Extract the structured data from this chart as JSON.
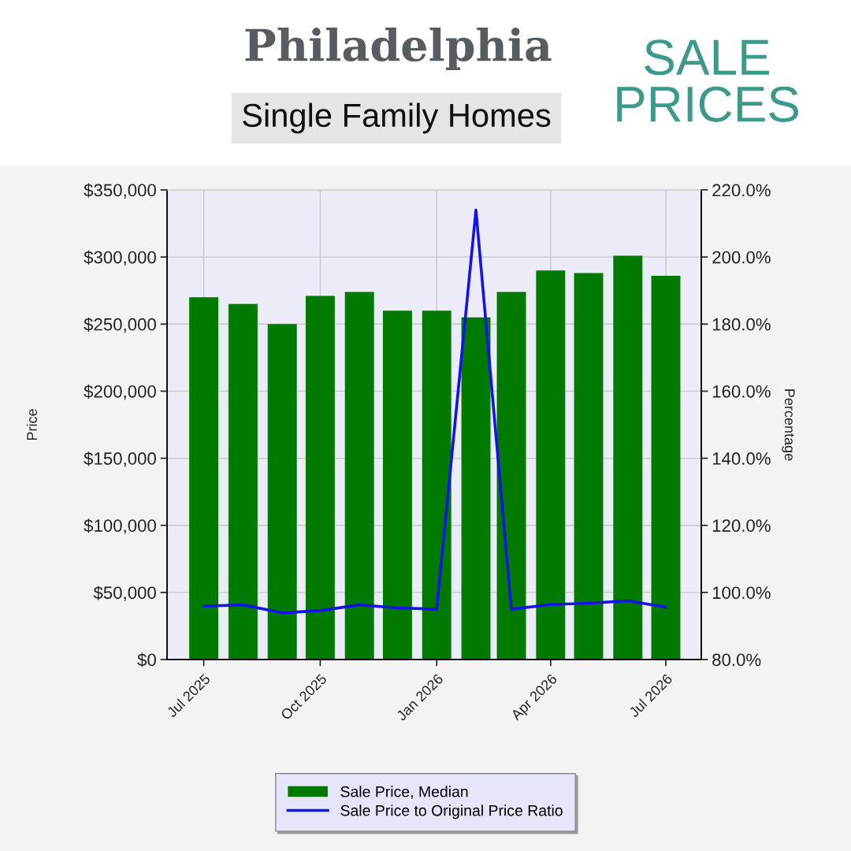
{
  "chart_data": {
    "type": "bar",
    "title": "Philadelphia",
    "subtitle": "Single Family Homes",
    "annotations": [
      "SALE PRICES"
    ],
    "ylabel": "Price",
    "y2label": "Percentage",
    "x": [
      "2025-07",
      "2025-08",
      "2025-09",
      "2025-10",
      "2025-11",
      "2025-12",
      "2026-01",
      "2026-02",
      "2026-03",
      "2026-04",
      "2026-05",
      "2026-06",
      "2026-07"
    ],
    "xlim": [
      "2025-06-02",
      "2026-07-29"
    ],
    "xticks": [
      {
        "value": "2025-07",
        "label": "Jul 2025"
      },
      {
        "value": "2025-10",
        "label": "Oct 2025"
      },
      {
        "value": "2026-01",
        "label": "Jan 2026"
      },
      {
        "value": "2026-04",
        "label": "Apr 2026"
      },
      {
        "value": "2026-07",
        "label": "Jul 2026"
      }
    ],
    "ylim": [
      0,
      350000
    ],
    "yticks": [
      {
        "value": 0,
        "label": "$0"
      },
      {
        "value": 50000,
        "label": "$50,000"
      },
      {
        "value": 100000,
        "label": "$100,000"
      },
      {
        "value": 150000,
        "label": "$150,000"
      },
      {
        "value": 200000,
        "label": "$200,000"
      },
      {
        "value": 250000,
        "label": "$250,000"
      },
      {
        "value": 300000,
        "label": "$300,000"
      },
      {
        "value": 350000,
        "label": "$350,000"
      }
    ],
    "y2lim": [
      80,
      220
    ],
    "y2ticks": [
      {
        "value": 80,
        "label": "80.0%"
      },
      {
        "value": 100,
        "label": "100.0%"
      },
      {
        "value": 120,
        "label": "120.0%"
      },
      {
        "value": 140,
        "label": "140.0%"
      },
      {
        "value": 160,
        "label": "160.0%"
      },
      {
        "value": 180,
        "label": "180.0%"
      },
      {
        "value": 200,
        "label": "200.0%"
      },
      {
        "value": 220,
        "label": "220.0%"
      }
    ],
    "series": [
      {
        "name": "Sale Price, Median",
        "color": "#007a00",
        "values": [
          270000,
          265000,
          250000,
          271000,
          274000,
          260000,
          260000,
          255000,
          274000,
          290000,
          288000,
          301000,
          286000
        ]
      },
      {
        "name": "Sale Price to Original Price Ratio",
        "type": "line",
        "axis": "y2",
        "color": "#1414e6",
        "values": [
          95.9,
          96.3,
          93.9,
          94.6,
          96.3,
          95.4,
          95,
          214,
          95,
          96.4,
          96.8,
          97.5,
          95.6
        ]
      }
    ],
    "grid": true,
    "legend": "bottom",
    "marker": "none",
    "line_style": "solid"
  }
}
